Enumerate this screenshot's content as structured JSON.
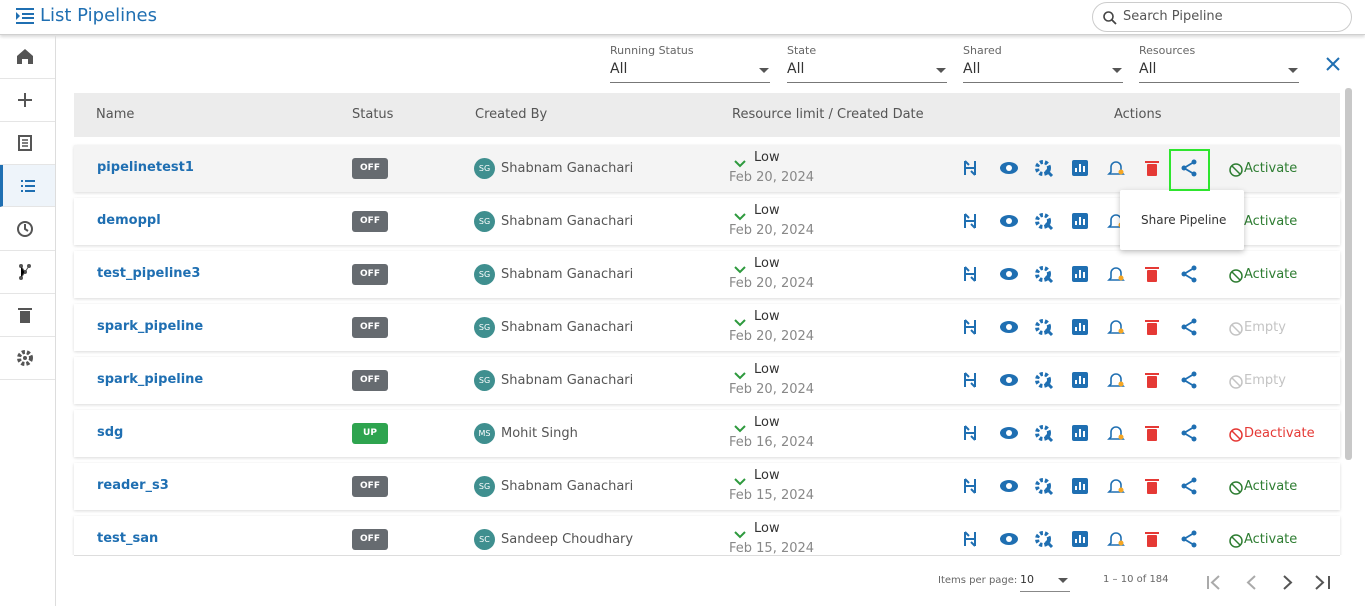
{
  "header": {
    "title": "List Pipelines",
    "search_placeholder": "Search Pipeline"
  },
  "filters": [
    {
      "label": "Running Status",
      "value": "All"
    },
    {
      "label": "State",
      "value": "All"
    },
    {
      "label": "Shared",
      "value": "All"
    },
    {
      "label": "Resources",
      "value": "All"
    }
  ],
  "table": {
    "columns": [
      "Name",
      "Status",
      "Created By",
      "Resource limit / Created Date",
      "Actions"
    ],
    "rows": [
      {
        "name": "pipelinetest1",
        "status": "OFF",
        "status_color": "#666b70",
        "initials": "SG",
        "creator": "Shabnam Ganachari",
        "resource": "Low",
        "date": "Feb 20, 2024",
        "action": "Activate",
        "action_color": "#2e7d32"
      },
      {
        "name": "demoppl",
        "status": "OFF",
        "status_color": "#666b70",
        "initials": "SG",
        "creator": "Shabnam Ganachari",
        "resource": "Low",
        "date": "Feb 20, 2024",
        "action": "Activate",
        "action_color": "#2e7d32"
      },
      {
        "name": "test_pipeline3",
        "status": "OFF",
        "status_color": "#666b70",
        "initials": "SG",
        "creator": "Shabnam Ganachari",
        "resource": "Low",
        "date": "Feb 20, 2024",
        "action": "Activate",
        "action_color": "#2e7d32"
      },
      {
        "name": "spark_pipeline",
        "status": "OFF",
        "status_color": "#666b70",
        "initials": "SG",
        "creator": "Shabnam Ganachari",
        "resource": "Low",
        "date": "Feb 20, 2024",
        "action": "Empty",
        "action_color": "#c4c4c4"
      },
      {
        "name": "spark_pipeline",
        "status": "OFF",
        "status_color": "#666b70",
        "initials": "SG",
        "creator": "Shabnam Ganachari",
        "resource": "Low",
        "date": "Feb 20, 2024",
        "action": "Empty",
        "action_color": "#c4c4c4"
      },
      {
        "name": "sdg",
        "status": "UP",
        "status_color": "#2ea44f",
        "initials": "MS",
        "creator": "Mohit Singh",
        "resource": "Low",
        "date": "Feb 16, 2024",
        "action": "Deactivate",
        "action_color": "#e53935"
      },
      {
        "name": "reader_s3",
        "status": "OFF",
        "status_color": "#666b70",
        "initials": "SG",
        "creator": "Shabnam Ganachari",
        "resource": "Low",
        "date": "Feb 15, 2024",
        "action": "Activate",
        "action_color": "#2e7d32"
      },
      {
        "name": "test_san",
        "status": "OFF",
        "status_color": "#666b70",
        "initials": "SC",
        "creator": "Sandeep Choudhary",
        "resource": "Low",
        "date": "Feb 15, 2024",
        "action": "Activate",
        "action_color": "#2e7d32"
      }
    ]
  },
  "tooltip": "Share Pipeline",
  "pagination": {
    "label": "Items per page:",
    "page_size": 10,
    "range": "1 – 10 of 184"
  }
}
